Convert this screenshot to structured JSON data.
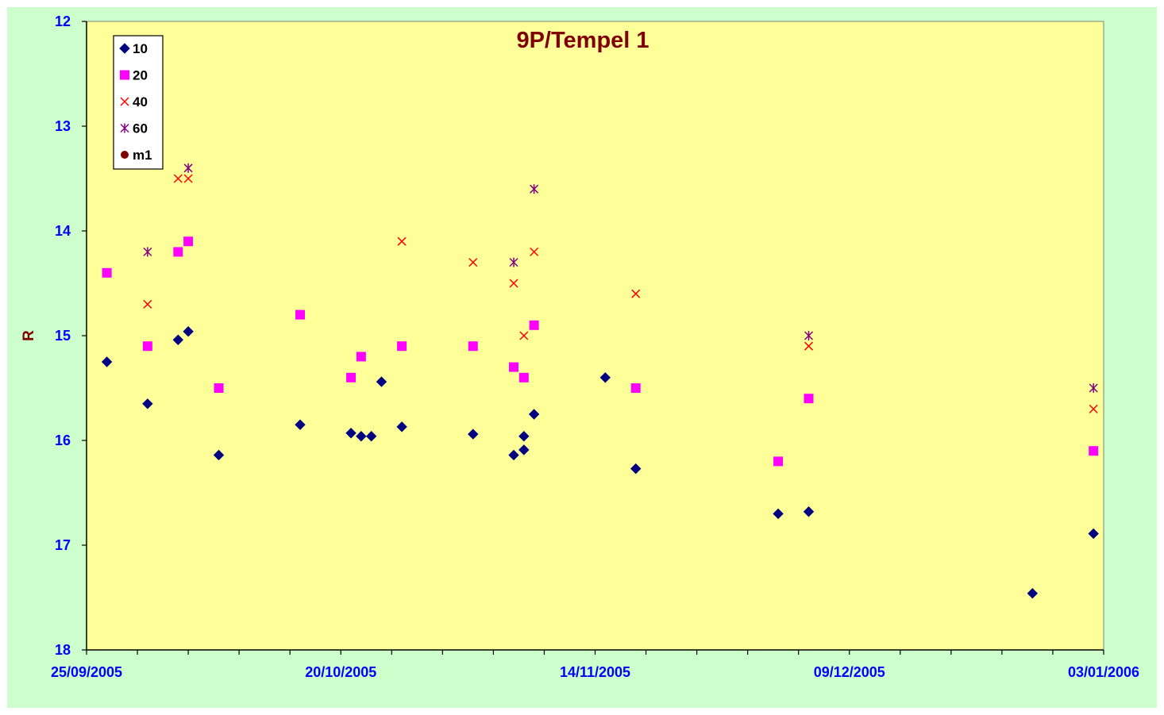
{
  "chart_data": {
    "type": "scatter",
    "title": "9P/Tempel 1",
    "xlabel": "",
    "ylabel": "R",
    "x_axis": {
      "type": "date",
      "range": [
        "2005-09-25",
        "2006-01-03"
      ],
      "tick_labels": [
        "25/09/2005",
        "20/10/2005",
        "14/11/2005",
        "09/12/2005",
        "03/01/2006"
      ],
      "minor_tick_days": 5
    },
    "y_axis": {
      "range": [
        12,
        18
      ],
      "inverted": true,
      "tick_labels": [
        "12",
        "13",
        "14",
        "15",
        "16",
        "17",
        "18"
      ]
    },
    "grid": false,
    "legend_position": "top-left",
    "colors": {
      "plot_background": "#ffff99",
      "outer_background": "#ccffcc",
      "tick_text": "#0000ff",
      "title_text": "#800000"
    },
    "series": [
      {
        "name": "10",
        "marker": "diamond",
        "color": "#000080",
        "points": [
          [
            "2005-09-27",
            15.25
          ],
          [
            "2005-10-01",
            15.65
          ],
          [
            "2005-10-04",
            15.04
          ],
          [
            "2005-10-05",
            14.96
          ],
          [
            "2005-10-08",
            16.14
          ],
          [
            "2005-10-16",
            15.85
          ],
          [
            "2005-10-21",
            15.93
          ],
          [
            "2005-10-22",
            15.96
          ],
          [
            "2005-10-23",
            15.96
          ],
          [
            "2005-10-24",
            15.44
          ],
          [
            "2005-10-26",
            15.87
          ],
          [
            "2005-11-02",
            15.94
          ],
          [
            "2005-11-06",
            16.14
          ],
          [
            "2005-11-07",
            16.09
          ],
          [
            "2005-11-07",
            15.96
          ],
          [
            "2005-11-08",
            15.75
          ],
          [
            "2005-11-15",
            15.4
          ],
          [
            "2005-11-18",
            16.27
          ],
          [
            "2005-12-02",
            16.7
          ],
          [
            "2005-12-05",
            16.68
          ],
          [
            "2005-12-27",
            17.46
          ],
          [
            "2006-01-02",
            16.89
          ]
        ]
      },
      {
        "name": "20",
        "marker": "square",
        "color": "#ff00ff",
        "points": [
          [
            "2005-09-27",
            14.4
          ],
          [
            "2005-10-01",
            15.1
          ],
          [
            "2005-10-04",
            14.2
          ],
          [
            "2005-10-05",
            14.1
          ],
          [
            "2005-10-08",
            15.5
          ],
          [
            "2005-10-16",
            14.8
          ],
          [
            "2005-10-21",
            15.4
          ],
          [
            "2005-10-22",
            15.2
          ],
          [
            "2005-10-26",
            15.1
          ],
          [
            "2005-11-02",
            15.1
          ],
          [
            "2005-11-06",
            15.3
          ],
          [
            "2005-11-07",
            15.4
          ],
          [
            "2005-11-08",
            14.9
          ],
          [
            "2005-11-18",
            15.5
          ],
          [
            "2005-12-02",
            16.2
          ],
          [
            "2005-12-05",
            15.6
          ],
          [
            "2006-01-02",
            16.1
          ]
        ]
      },
      {
        "name": "40",
        "marker": "x",
        "color": "#ff0000",
        "points": [
          [
            "2005-10-01",
            14.7
          ],
          [
            "2005-10-04",
            13.5
          ],
          [
            "2005-10-05",
            13.5
          ],
          [
            "2005-10-26",
            14.1
          ],
          [
            "2005-11-02",
            14.3
          ],
          [
            "2005-11-06",
            14.5
          ],
          [
            "2005-11-07",
            15.0
          ],
          [
            "2005-11-08",
            14.2
          ],
          [
            "2005-11-18",
            14.6
          ],
          [
            "2005-12-05",
            15.1
          ],
          [
            "2006-01-02",
            15.7
          ]
        ]
      },
      {
        "name": "60",
        "marker": "star",
        "color": "#800080",
        "points": [
          [
            "2005-10-01",
            14.2
          ],
          [
            "2005-10-05",
            13.4
          ],
          [
            "2005-11-06",
            14.3
          ],
          [
            "2005-11-08",
            13.6
          ],
          [
            "2005-12-05",
            15.0
          ],
          [
            "2006-01-02",
            15.5
          ]
        ]
      },
      {
        "name": "m1",
        "marker": "circle",
        "color": "#800000",
        "points": []
      }
    ]
  }
}
